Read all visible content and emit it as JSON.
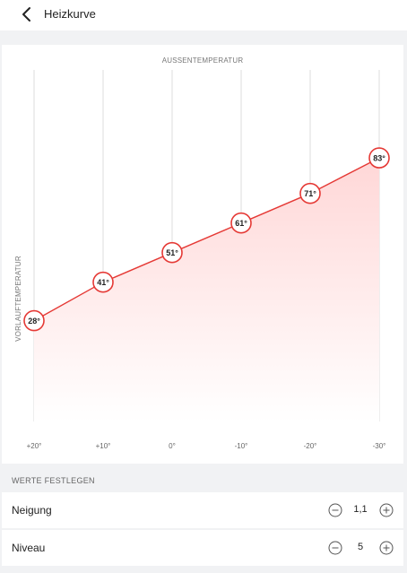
{
  "header": {
    "title": "Heizkurve",
    "back_icon": "chevron-left-icon"
  },
  "colors": {
    "curve": "#e53935",
    "fill_top": "#ffd7d7",
    "fill_bottom": "#ffffff",
    "grid": "#dcdcdc"
  },
  "chart_data": {
    "type": "line",
    "title": "",
    "xlabel": "AUSSENTEMPERATUR",
    "ylabel": "VORLAUFTEMPERATUR",
    "categories": [
      "+20°",
      "+10°",
      "0°",
      "-10°",
      "-20°",
      "-30°"
    ],
    "x": [
      20,
      10,
      0,
      -10,
      -20,
      -30
    ],
    "values": [
      28,
      41,
      51,
      61,
      71,
      83
    ],
    "point_labels": [
      "28°",
      "41°",
      "51°",
      "61°",
      "71°",
      "83°"
    ],
    "ylim": [
      0,
      90
    ],
    "grid": "vertical",
    "legend": "none"
  },
  "settings": {
    "section_title": "WERTE FESTLEGEN",
    "neigung": {
      "label": "Neigung",
      "value": "1,1"
    },
    "niveau": {
      "label": "Niveau",
      "value": "5"
    }
  }
}
